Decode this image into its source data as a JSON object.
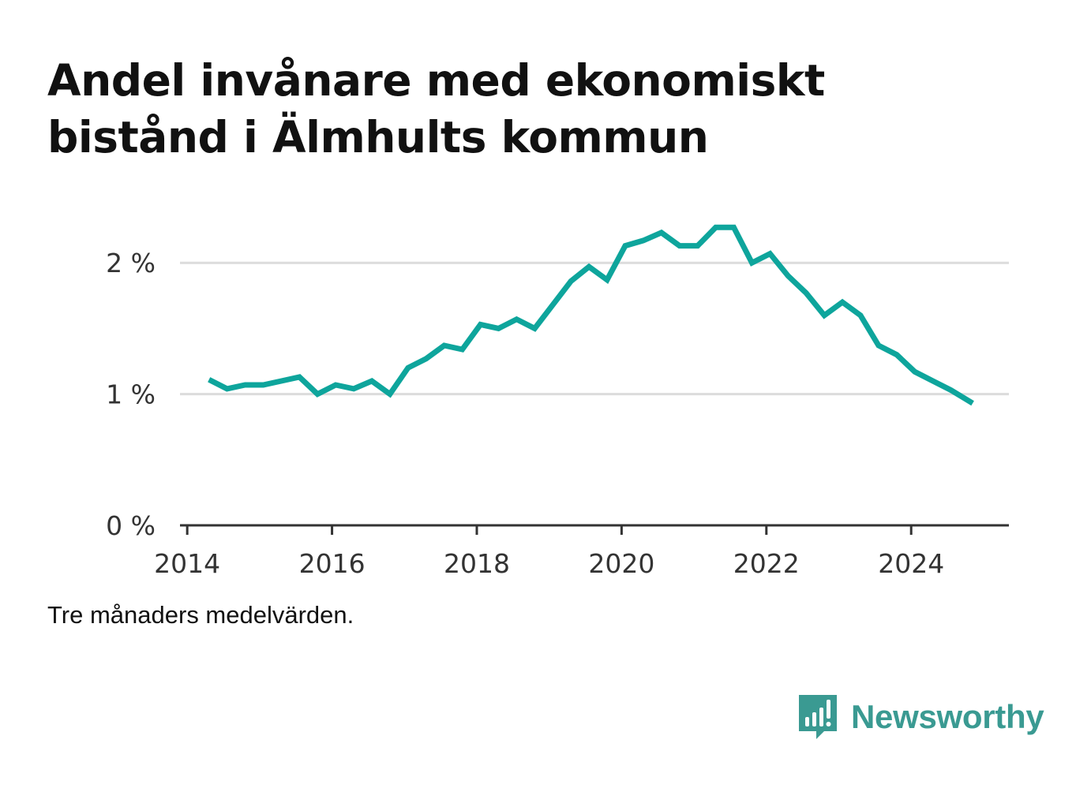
{
  "title_lines": [
    "Andel invånare med ekonomiskt",
    "bistånd i Älmhults kommun"
  ],
  "note": "Tre månaders medelvärden.",
  "brand": {
    "name": "Newsworthy",
    "icon": "newsworthy-logo-icon",
    "color": "#3a9a92"
  },
  "chart_data": {
    "type": "line",
    "line_color": "#0ea59c",
    "grid": true,
    "ylim": [
      0,
      2.5
    ],
    "yticks": [
      {
        "value": 0,
        "label": "0 %"
      },
      {
        "value": 1,
        "label": "1 %"
      },
      {
        "value": 2,
        "label": "2 %"
      }
    ],
    "xlim": [
      2013.9,
      2025.35
    ],
    "xticks": [
      {
        "value": 2014,
        "label": "2014"
      },
      {
        "value": 2016,
        "label": "2016"
      },
      {
        "value": 2018,
        "label": "2018"
      },
      {
        "value": 2020,
        "label": "2020"
      },
      {
        "value": 2022,
        "label": "2022"
      },
      {
        "value": 2024,
        "label": "2024"
      }
    ],
    "series": [
      {
        "x": [
          2014.3,
          2014.55,
          2014.8,
          2015.05,
          2015.3,
          2015.55,
          2015.8,
          2016.05,
          2016.3,
          2016.55,
          2016.8,
          2017.05,
          2017.3,
          2017.55,
          2017.8,
          2018.05,
          2018.3,
          2018.55,
          2018.8,
          2019.05,
          2019.3,
          2019.55,
          2019.8,
          2020.05,
          2020.3,
          2020.55,
          2020.8,
          2021.05,
          2021.3,
          2021.55,
          2021.8,
          2022.05,
          2022.3,
          2022.55,
          2022.8,
          2023.05,
          2023.3,
          2023.55,
          2023.8,
          2024.05,
          2024.3,
          2024.55,
          2024.85
        ],
        "values": [
          1.11,
          1.04,
          1.07,
          1.07,
          1.1,
          1.13,
          1.0,
          1.07,
          1.04,
          1.1,
          1.0,
          1.2,
          1.27,
          1.37,
          1.34,
          1.53,
          1.5,
          1.57,
          1.5,
          1.68,
          1.86,
          1.97,
          1.87,
          2.13,
          2.17,
          2.23,
          2.13,
          2.13,
          2.27,
          2.27,
          2.0,
          2.07,
          1.9,
          1.77,
          1.6,
          1.7,
          1.6,
          1.37,
          1.3,
          1.17,
          1.1,
          1.03,
          0.93
        ]
      }
    ]
  }
}
